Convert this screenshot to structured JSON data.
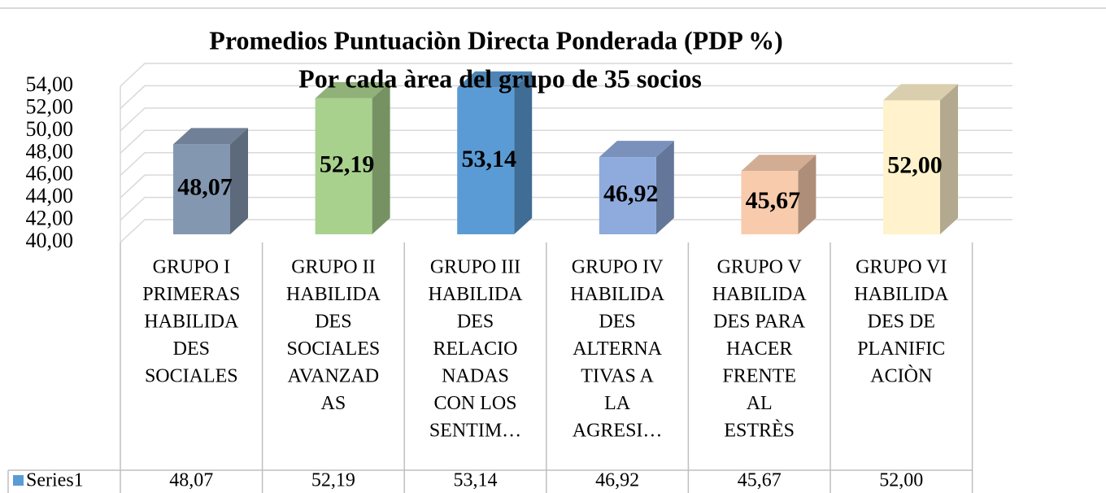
{
  "chart_data": {
    "type": "bar3d",
    "title": [
      "Promedios Puntuaciòn Directa Ponderada (PDP %)",
      "Por cada àrea del grupo de 35 socios"
    ],
    "categories": [
      [
        "GRUPO I",
        "PRIMERAS",
        "HABILIDA",
        "DES",
        "SOCIALES"
      ],
      [
        "GRUPO II",
        "HABILIDA",
        "DES",
        "SOCIALES",
        "AVANZAD",
        "AS"
      ],
      [
        "GRUPO III",
        "HABILIDA",
        "DES",
        "RELACIO",
        "NADAS",
        "CON LOS",
        "SENTIM…"
      ],
      [
        "GRUPO IV",
        "HABILIDA",
        "DES",
        "ALTERNA",
        "TIVAS A",
        "LA",
        "AGRESI…"
      ],
      [
        "GRUPO V",
        "HABILIDA",
        "DES PARA",
        "HACER",
        "FRENTE",
        "AL",
        "ESTRÈS"
      ],
      [
        "GRUPO VI",
        "HABILIDA",
        "DES DE",
        "PLANIFIC",
        "ACIÒN"
      ]
    ],
    "series": [
      {
        "name": "Series1",
        "color": "#5b9bd5",
        "point_colors": [
          "#8497b0",
          "#a9d18e",
          "#5b9bd5",
          "#8faadc",
          "#f8cbad",
          "#fff2cc"
        ],
        "values": [
          48.07,
          52.19,
          53.14,
          46.92,
          45.67,
          52.0
        ],
        "value_labels": [
          "48,07",
          "52,19",
          "53,14",
          "46,92",
          "45,67",
          "52,00"
        ]
      }
    ],
    "ylim": [
      40,
      54
    ],
    "yticks": [
      {
        "value": 40,
        "label": "40,00"
      },
      {
        "value": 42,
        "label": "42,00"
      },
      {
        "value": 44,
        "label": "44,00"
      },
      {
        "value": 46,
        "label": "46,00"
      },
      {
        "value": 48,
        "label": "48,00"
      },
      {
        "value": 50,
        "label": "50,00"
      },
      {
        "value": 52,
        "label": "52,00"
      },
      {
        "value": 54,
        "label": "54,00"
      }
    ],
    "grid": true,
    "data_table": true
  }
}
